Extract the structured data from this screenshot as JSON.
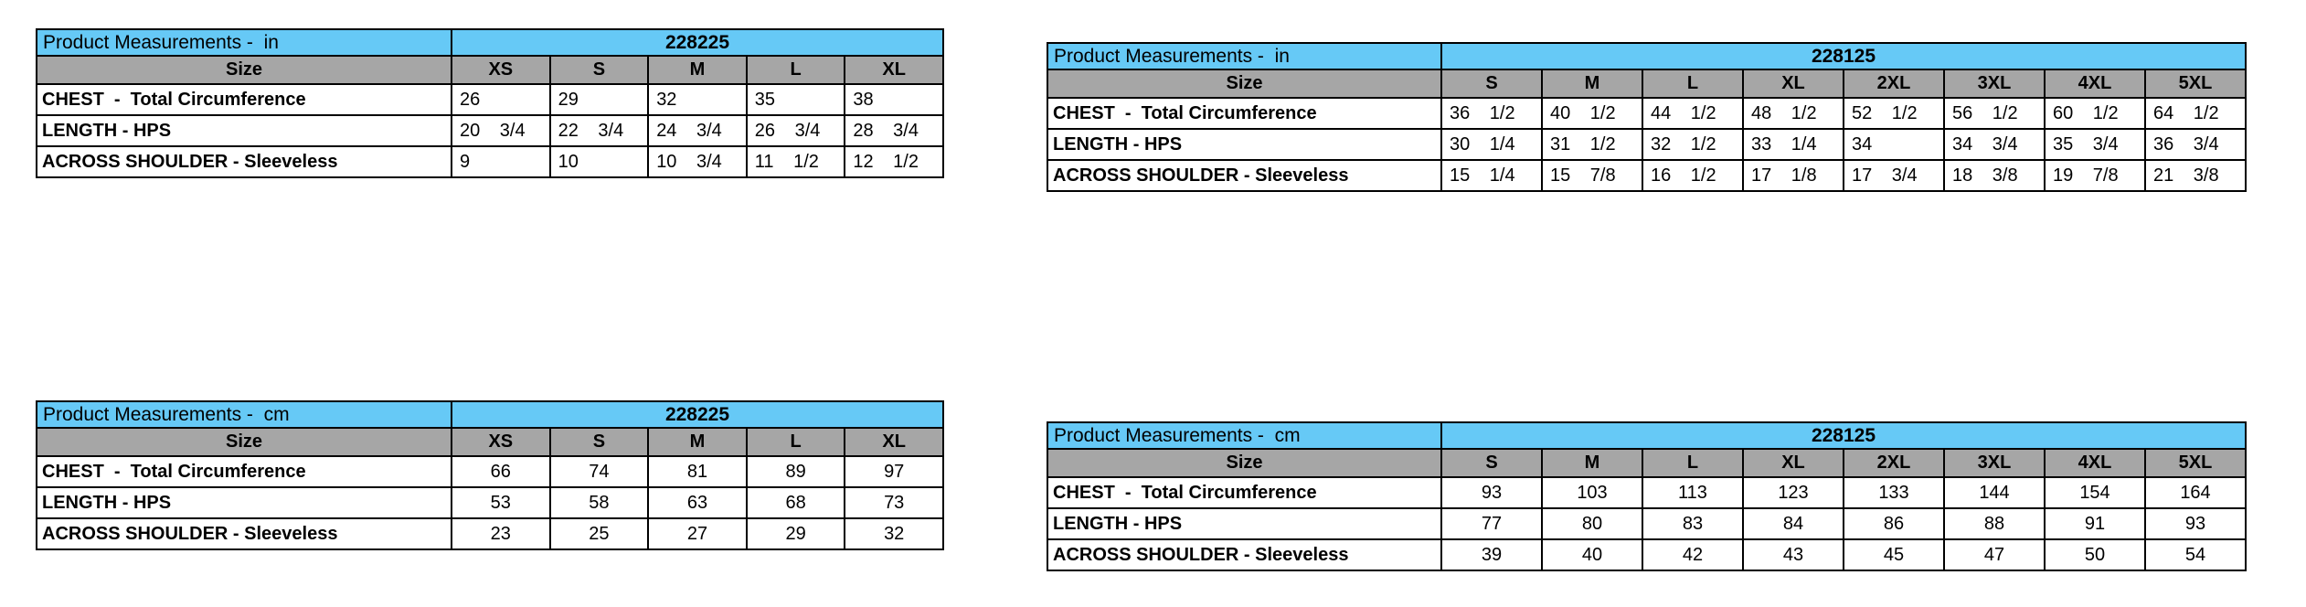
{
  "colors": {
    "title_bg": "#66C9F6",
    "header_bg": "#A6A6A6",
    "border": "#000000",
    "text": "#000000",
    "cell_bg": "#ffffff"
  },
  "tables": [
    {
      "id": "in-228225",
      "unit": "in",
      "title": "Product Measurements -  in",
      "code": "228225",
      "size_header": "Size",
      "sizes": [
        "XS",
        "S",
        "M",
        "L",
        "XL"
      ],
      "rows": [
        {
          "label": "CHEST  -  Total Circumference",
          "values": [
            "26",
            "29",
            "32",
            "35",
            "38"
          ]
        },
        {
          "label": "LENGTH - HPS",
          "values": [
            "20 3/4",
            "22 3/4",
            "24 3/4",
            "26 3/4",
            "28 3/4"
          ]
        },
        {
          "label": "ACROSS SHOULDER - Sleeveless",
          "values": [
            "9",
            "10",
            "10 3/4",
            "11 1/2",
            "12 1/2"
          ]
        }
      ]
    },
    {
      "id": "in-228125",
      "unit": "in",
      "title": "Product Measurements -  in",
      "code": "228125",
      "size_header": "Size",
      "sizes": [
        "S",
        "M",
        "L",
        "XL",
        "2XL",
        "3XL",
        "4XL",
        "5XL"
      ],
      "rows": [
        {
          "label": "CHEST  -  Total Circumference",
          "values": [
            "36 1/2",
            "40 1/2",
            "44 1/2",
            "48 1/2",
            "52 1/2",
            "56 1/2",
            "60 1/2",
            "64 1/2"
          ]
        },
        {
          "label": "LENGTH - HPS",
          "values": [
            "30 1/4",
            "31 1/2",
            "32 1/2",
            "33 1/4",
            "34",
            "34 3/4",
            "35 3/4",
            "36 3/4"
          ]
        },
        {
          "label": "ACROSS SHOULDER - Sleeveless",
          "values": [
            "15 1/4",
            "15 7/8",
            "16 1/2",
            "17 1/8",
            "17 3/4",
            "18 3/8",
            "19 7/8",
            "21 3/8"
          ]
        }
      ]
    },
    {
      "id": "cm-228225",
      "unit": "cm",
      "title": "Product Measurements -  cm",
      "code": "228225",
      "size_header": "Size",
      "sizes": [
        "XS",
        "S",
        "M",
        "L",
        "XL"
      ],
      "rows": [
        {
          "label": "CHEST  -  Total Circumference",
          "values": [
            "66",
            "74",
            "81",
            "89",
            "97"
          ]
        },
        {
          "label": "LENGTH - HPS",
          "values": [
            "53",
            "58",
            "63",
            "68",
            "73"
          ]
        },
        {
          "label": "ACROSS SHOULDER - Sleeveless",
          "values": [
            "23",
            "25",
            "27",
            "29",
            "32"
          ]
        }
      ]
    },
    {
      "id": "cm-228125",
      "unit": "cm",
      "title": "Product Measurements -  cm",
      "code": "228125",
      "size_header": "Size",
      "sizes": [
        "S",
        "M",
        "L",
        "XL",
        "2XL",
        "3XL",
        "4XL",
        "5XL"
      ],
      "rows": [
        {
          "label": "CHEST  -  Total Circumference",
          "values": [
            "93",
            "103",
            "113",
            "123",
            "133",
            "144",
            "154",
            "164"
          ]
        },
        {
          "label": "LENGTH - HPS",
          "values": [
            "77",
            "80",
            "83",
            "84",
            "86",
            "88",
            "91",
            "93"
          ]
        },
        {
          "label": "ACROSS SHOULDER - Sleeveless",
          "values": [
            "39",
            "40",
            "42",
            "43",
            "45",
            "47",
            "50",
            "54"
          ]
        }
      ]
    }
  ]
}
